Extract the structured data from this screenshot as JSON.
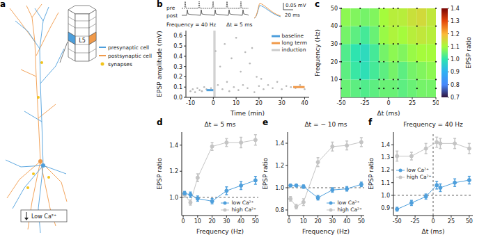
{
  "chart_data": [
    {
      "type": "diagram",
      "panel": "a",
      "layer_label": "L5",
      "cells": [
        {
          "name": "presynaptic cell",
          "color": "#4e9fdc"
        },
        {
          "name": "postsynaptic cell",
          "color": "#f09a4a"
        },
        {
          "name": "synapses",
          "color": "#f2c41c"
        }
      ],
      "condition": "Low Ca²⁺"
    },
    {
      "type": "scatter",
      "panel": "b",
      "x_label": "Time (min)",
      "y_label": "EPSP amplitude (mV)",
      "xlim": [
        -12,
        42
      ],
      "xticks": [
        -10,
        0,
        10,
        20,
        30,
        40
      ],
      "ylim": [
        0,
        0.65
      ],
      "yticks": [
        {
          "value": 0,
          "label": "0.0"
        },
        0.1,
        0.2,
        0.3,
        0.4,
        0.5,
        0.6
      ],
      "legend": "upper right",
      "points": {
        "color": "#b8b8b8",
        "x": [
          -10,
          -9,
          -8,
          -7,
          -6,
          -5,
          -4,
          -3,
          -2,
          -1,
          1,
          2,
          3,
          4,
          5,
          6,
          7,
          8,
          9,
          10,
          11,
          12,
          13,
          14,
          15,
          16,
          17,
          18,
          19,
          20,
          21,
          22,
          24,
          26,
          28,
          30,
          32,
          34,
          36,
          38,
          40
        ],
        "values": [
          0.06,
          0.08,
          0.05,
          0.09,
          0.07,
          0.06,
          0.1,
          0.08,
          0.07,
          0.09,
          0.45,
          0.12,
          0.3,
          0.08,
          0.52,
          0.15,
          0.06,
          0.38,
          0.1,
          0.58,
          0.07,
          0.25,
          0.12,
          0.44,
          0.09,
          0.33,
          0.48,
          0.05,
          0.2,
          0.11,
          0.18,
          0.08,
          0.12,
          0.09,
          0.15,
          0.08,
          0.11,
          0.1,
          0.09,
          0.12,
          0.08
        ]
      },
      "series": [
        {
          "name": "baseline",
          "type": "line",
          "color": "#4e9fdc",
          "x": [
            -3,
            0
          ],
          "values": [
            0.07,
            0.07
          ]
        },
        {
          "name": "long term",
          "type": "line",
          "color": "#f09a4a",
          "x": [
            35,
            40
          ],
          "values": [
            0.1,
            0.1
          ]
        },
        {
          "name": "induction",
          "type": "band",
          "color": "#cccccc",
          "x": [
            0,
            1
          ]
        }
      ],
      "inset": {
        "labels": [
          "pre",
          "post"
        ],
        "text": [
          "Frequency = 40 Hz",
          "Δt = 5 ms"
        ],
        "scale": [
          "0.05 mV",
          "20 ms"
        ]
      }
    },
    {
      "type": "heatmap",
      "panel": "c",
      "x_label": "Δt (ms)",
      "y_label": "Frequency (Hz)",
      "xlim": [
        -50,
        50
      ],
      "xticks": [
        -50,
        -25,
        0,
        25,
        50
      ],
      "ylim": [
        0,
        50
      ],
      "yticks": [
        10,
        20,
        30,
        40,
        50
      ],
      "x": [
        -45,
        -35,
        -25,
        -15,
        -5,
        5,
        15,
        25,
        35,
        45
      ],
      "y": [
        5,
        15,
        25,
        35,
        45
      ],
      "cells": [
        [
          1.05,
          1.04,
          1.03,
          1.04,
          1.05,
          1.05,
          1.04,
          1.05,
          1.06,
          1.06
        ],
        [
          1.04,
          1.01,
          0.99,
          1.02,
          1.04,
          1.06,
          1.04,
          1.06,
          1.07,
          1.08
        ],
        [
          1.03,
          1.0,
          0.98,
          1.02,
          1.06,
          1.08,
          1.07,
          1.09,
          1.1,
          1.1
        ],
        [
          1.06,
          1.04,
          1.02,
          1.05,
          1.09,
          1.11,
          1.1,
          1.12,
          1.13,
          1.12
        ],
        [
          1.08,
          1.07,
          1.06,
          1.07,
          1.1,
          1.12,
          1.12,
          1.14,
          1.15,
          1.13
        ]
      ],
      "samples": {
        "x": [
          -50,
          -30,
          -10,
          -5,
          5,
          10,
          30,
          50
        ],
        "y": [
          5,
          10,
          20,
          30,
          40,
          50
        ]
      },
      "colorbar": {
        "label": "EPSP ratio",
        "range": [
          0.7,
          1.4
        ],
        "ticks": [
          0.7,
          0.8,
          0.9,
          {
            "value": 1,
            "label": "1.0"
          },
          1.1,
          1.2,
          1.3,
          1.4
        ]
      }
    },
    {
      "type": "line",
      "panel": "d",
      "title": "Δt = 5 ms",
      "x_label": "Frequency (Hz)",
      "y_label": "EPSP ratio",
      "xlim": [
        -1,
        52
      ],
      "xticks": [
        0,
        10,
        20,
        30,
        40,
        50
      ],
      "ylim": [
        0.86,
        1.5
      ],
      "yticks": [
        {
          "value": 1,
          "label": "1.0"
        },
        1.2,
        1.4
      ],
      "reference_y": 1,
      "legend": "lower right",
      "x": [
        1,
        5,
        10,
        20,
        30,
        40,
        50
      ],
      "series": [
        {
          "name": "low Ca²⁺",
          "color": "#4e9fdc",
          "marker": "o",
          "line_style": "solid",
          "values": [
            1.03,
            1.02,
            0.99,
            0.97,
            1.05,
            1.09,
            1.13
          ],
          "errors": [
            0.015,
            0.02,
            0.02,
            0.02,
            0.03,
            0.03,
            0.03
          ]
        },
        {
          "name": "high Ca²⁺",
          "color": "#c4c4c4",
          "marker": "o",
          "line_style": "solid",
          "values": [
            1.02,
            0.96,
            1.15,
            1.39,
            1.42,
            1.42,
            1.44
          ],
          "errors": [
            0.02,
            0.02,
            0.03,
            0.03,
            0.03,
            0.04,
            0.04
          ]
        }
      ]
    },
    {
      "type": "line",
      "panel": "e",
      "title": "Δt = − 10 ms",
      "x_label": "Frequency (Hz)",
      "y_label": "EPSP ratio",
      "xlim": [
        -1,
        52
      ],
      "xticks": [
        0,
        10,
        20,
        30,
        40,
        50
      ],
      "ylim": [
        0.75,
        1.5
      ],
      "yticks": [
        0.8,
        {
          "value": 1,
          "label": "1.0"
        },
        1.2,
        1.4
      ],
      "reference_y": 1,
      "legend": "lower right",
      "x": [
        1,
        5,
        10,
        20,
        30,
        40,
        50
      ],
      "series": [
        {
          "name": "low Ca²⁺",
          "color": "#4e9fdc",
          "marker": "o",
          "line_style": "solid",
          "values": [
            1.02,
            1.02,
            1.01,
            0.91,
            0.98,
            0.99,
            1.03
          ],
          "errors": [
            0.01,
            0.01,
            0.015,
            0.02,
            0.02,
            0.02,
            0.02
          ]
        },
        {
          "name": "high Ca²⁺",
          "color": "#c4c4c4",
          "marker": "o",
          "line_style": "solid",
          "values": [
            0.9,
            0.83,
            0.87,
            1.23,
            1.37,
            1.38,
            1.41
          ],
          "errors": [
            0.02,
            0.02,
            0.03,
            0.04,
            0.04,
            0.04,
            0.04
          ]
        }
      ]
    },
    {
      "type": "line",
      "panel": "f",
      "title": "Frequency = 40 Hz",
      "x_label": "Δt (ms)",
      "y_label": "EPSP ratio",
      "xlim": [
        -55,
        55
      ],
      "xticks": [
        -50,
        -25,
        0,
        25,
        50
      ],
      "ylim": [
        0.84,
        1.5
      ],
      "yticks": [
        0.9,
        {
          "value": 1,
          "label": "1.0"
        },
        1.1,
        1.2,
        1.3,
        1.4
      ],
      "reference_y": 1,
      "reference_x": 0,
      "legend": "center left",
      "x": [
        -50,
        -30,
        -10,
        5,
        10,
        30,
        50
      ],
      "series": [
        {
          "name": "low Ca²⁺",
          "color": "#4e9fdc",
          "marker": "o",
          "line_style": "solid",
          "values": [
            0.89,
            0.94,
            0.99,
            1.08,
            1.06,
            1.1,
            1.12
          ],
          "errors": [
            0.015,
            0.02,
            0.02,
            0.03,
            0.03,
            0.03,
            0.03
          ]
        },
        {
          "name": "high Ca²⁺",
          "color": "#c4c4c4",
          "marker": "o",
          "line_style": "solid",
          "values": [
            1.31,
            1.31,
            1.37,
            1.42,
            1.41,
            1.41,
            1.37
          ],
          "errors": [
            0.04,
            0.03,
            0.04,
            0.04,
            0.04,
            0.04,
            0.04
          ]
        }
      ]
    }
  ]
}
